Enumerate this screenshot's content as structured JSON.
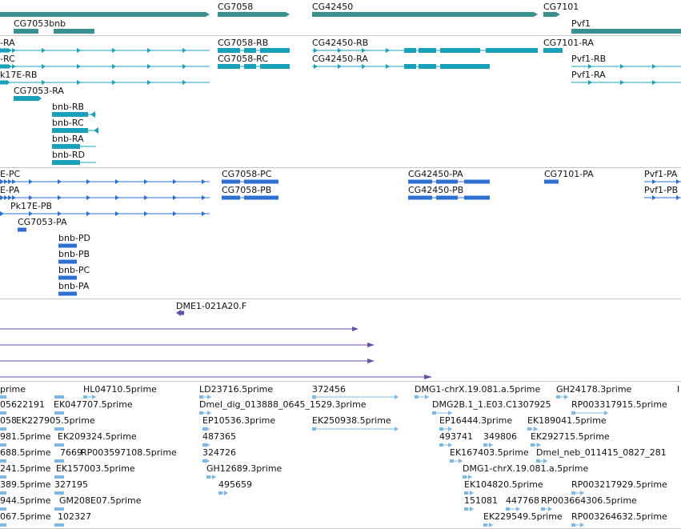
{
  "colors": {
    "gene": "#3a8f8f",
    "transcript": "#1aa0b8",
    "cds": "#2f6fd0",
    "clone": "#6a4fa8",
    "est": "#7fb8e0",
    "divider": "#c8c8c8"
  },
  "genes_track": {
    "labels": [
      "CG7058",
      "CG42450",
      "CG7101",
      "CG7053bnb",
      "Pvf1"
    ]
  },
  "transcripts_track": {
    "labels": [
      "-RA",
      "-RC",
      "k17E-RB",
      "CG7053-RA",
      "bnb-RB",
      "bnb-RC",
      "bnb-RA",
      "bnb-RD",
      "CG7058-RB",
      "CG7058-RC",
      "CG42450-RB",
      "CG42450-RA",
      "CG7101-RA",
      "Pvf1-RB",
      "Pvf1-RA"
    ]
  },
  "cds_track": {
    "labels": [
      "E-PC",
      "E-PA",
      "Pk17E-PB",
      "CG7053-PA",
      "bnb-PD",
      "bnb-PB",
      "bnb-PC",
      "bnb-PA",
      "CG7058-PC",
      "CG7058-PB",
      "CG42450-PA",
      "CG42450-PB",
      "CG7101-PA",
      "Pvf1-PA",
      "Pvf1-PB"
    ]
  },
  "clone_track": {
    "labels": [
      "DME1-021A20.F"
    ]
  },
  "est_track": {
    "labels": [
      "prime",
      "HL04710.5prime",
      "LD23716.5prime",
      "372456",
      "DMG1-chrX.19.081.a.5prime",
      "GH24178.3prime",
      "I",
      "05622191",
      "EK047707.5prime",
      "Dmel_dig_013888_0645_1529.3prime",
      "DMG2B.1_1.E03.C1307925",
      "RP003317915.5prime",
      "058",
      "EK227905.5prime",
      "EP10536.3prime",
      "EK250938.5prime",
      "EP16444.3prime",
      "EK189041.5prime",
      "981.5prime",
      "EK209324.5prime",
      "487365",
      "493741",
      "349806",
      "EK292715.5prime",
      "688.5prime",
      "7669",
      "RP003597108.5prime",
      "324726",
      "EK167403.5prime",
      "Dmel_neb_011415_0827_281",
      "241.5prime",
      "EK157003.5prime",
      "GH12689.3prime",
      "DMG1-chrX.19.081.a.5prime",
      "389.5prime",
      "327195",
      "495659",
      "EK104820.5prime",
      "944.5prime",
      "GM208E07.5prime",
      "151081",
      "447768",
      "RP003217929.5prime",
      "RP003664306.5prime",
      "067.5prime",
      "102327",
      "EK229549.5prime",
      "RP003264632.5prime"
    ]
  }
}
